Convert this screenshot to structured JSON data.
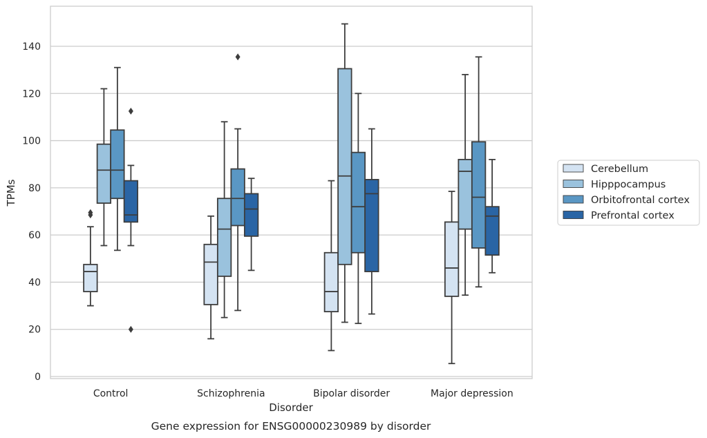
{
  "chart_data": {
    "type": "box",
    "xlabel": "Disorder",
    "ylabel": "TPMs",
    "caption": "Gene expression for ENSG00000230989 by disorder",
    "ylim": [
      -1,
      157
    ],
    "yticks": [
      0,
      20,
      40,
      60,
      80,
      100,
      120,
      140
    ],
    "grid": true,
    "legend_position": "right",
    "categories": [
      "Control",
      "Schizophrenia",
      "Bipolar disorder",
      "Major depression"
    ],
    "series": [
      {
        "name": "Cerebellum",
        "color": "#d4e3f2",
        "boxes": [
          {
            "whisker_low": 30,
            "q1": 36,
            "median": 44.5,
            "q3": 47.5,
            "whisker_high": 63.5,
            "outliers": [
              68.5,
              69.5
            ]
          },
          {
            "whisker_low": 16,
            "q1": 30.5,
            "median": 48.5,
            "q3": 56,
            "whisker_high": 68,
            "outliers": []
          },
          {
            "whisker_low": 11,
            "q1": 27.5,
            "median": 36,
            "q3": 52.5,
            "whisker_high": 83,
            "outliers": []
          },
          {
            "whisker_low": 5.5,
            "q1": 34,
            "median": 46,
            "q3": 65.5,
            "whisker_high": 78.5,
            "outliers": []
          }
        ]
      },
      {
        "name": "Hipppocampus",
        "color": "#9ac2dd",
        "boxes": [
          {
            "whisker_low": 55.5,
            "q1": 73.5,
            "median": 87.5,
            "q3": 98.5,
            "whisker_high": 122,
            "outliers": []
          },
          {
            "whisker_low": 25,
            "q1": 42.5,
            "median": 62.5,
            "q3": 75.5,
            "whisker_high": 108,
            "outliers": []
          },
          {
            "whisker_low": 23,
            "q1": 47.5,
            "median": 85,
            "q3": 130.5,
            "whisker_high": 149.5,
            "outliers": []
          },
          {
            "whisker_low": 34.5,
            "q1": 62.5,
            "median": 87,
            "q3": 92,
            "whisker_high": 128,
            "outliers": []
          }
        ]
      },
      {
        "name": "Orbitofrontal cortex",
        "color": "#5a97c4",
        "boxes": [
          {
            "whisker_low": 53.5,
            "q1": 75.5,
            "median": 87.5,
            "q3": 104.5,
            "whisker_high": 131,
            "outliers": []
          },
          {
            "whisker_low": 28,
            "q1": 64,
            "median": 75.5,
            "q3": 88,
            "whisker_high": 105,
            "outliers": [
              135.5
            ]
          },
          {
            "whisker_low": 22.5,
            "q1": 52.5,
            "median": 72,
            "q3": 95,
            "whisker_high": 120,
            "outliers": []
          },
          {
            "whisker_low": 38,
            "q1": 54.5,
            "median": 76,
            "q3": 99.5,
            "whisker_high": 135.5,
            "outliers": []
          }
        ]
      },
      {
        "name": "Prefrontal cortex",
        "color": "#2a65a5",
        "boxes": [
          {
            "whisker_low": 55.5,
            "q1": 65.5,
            "median": 68.5,
            "q3": 83,
            "whisker_high": 89.5,
            "outliers": [
              112.5,
              20
            ]
          },
          {
            "whisker_low": 45,
            "q1": 59.5,
            "median": 71,
            "q3": 77.5,
            "whisker_high": 84,
            "outliers": []
          },
          {
            "whisker_low": 26.5,
            "q1": 44.5,
            "median": 77.5,
            "q3": 83.5,
            "whisker_high": 105,
            "outliers": []
          },
          {
            "whisker_low": 44,
            "q1": 51.5,
            "median": 68,
            "q3": 72,
            "whisker_high": 92,
            "outliers": []
          }
        ]
      }
    ]
  }
}
